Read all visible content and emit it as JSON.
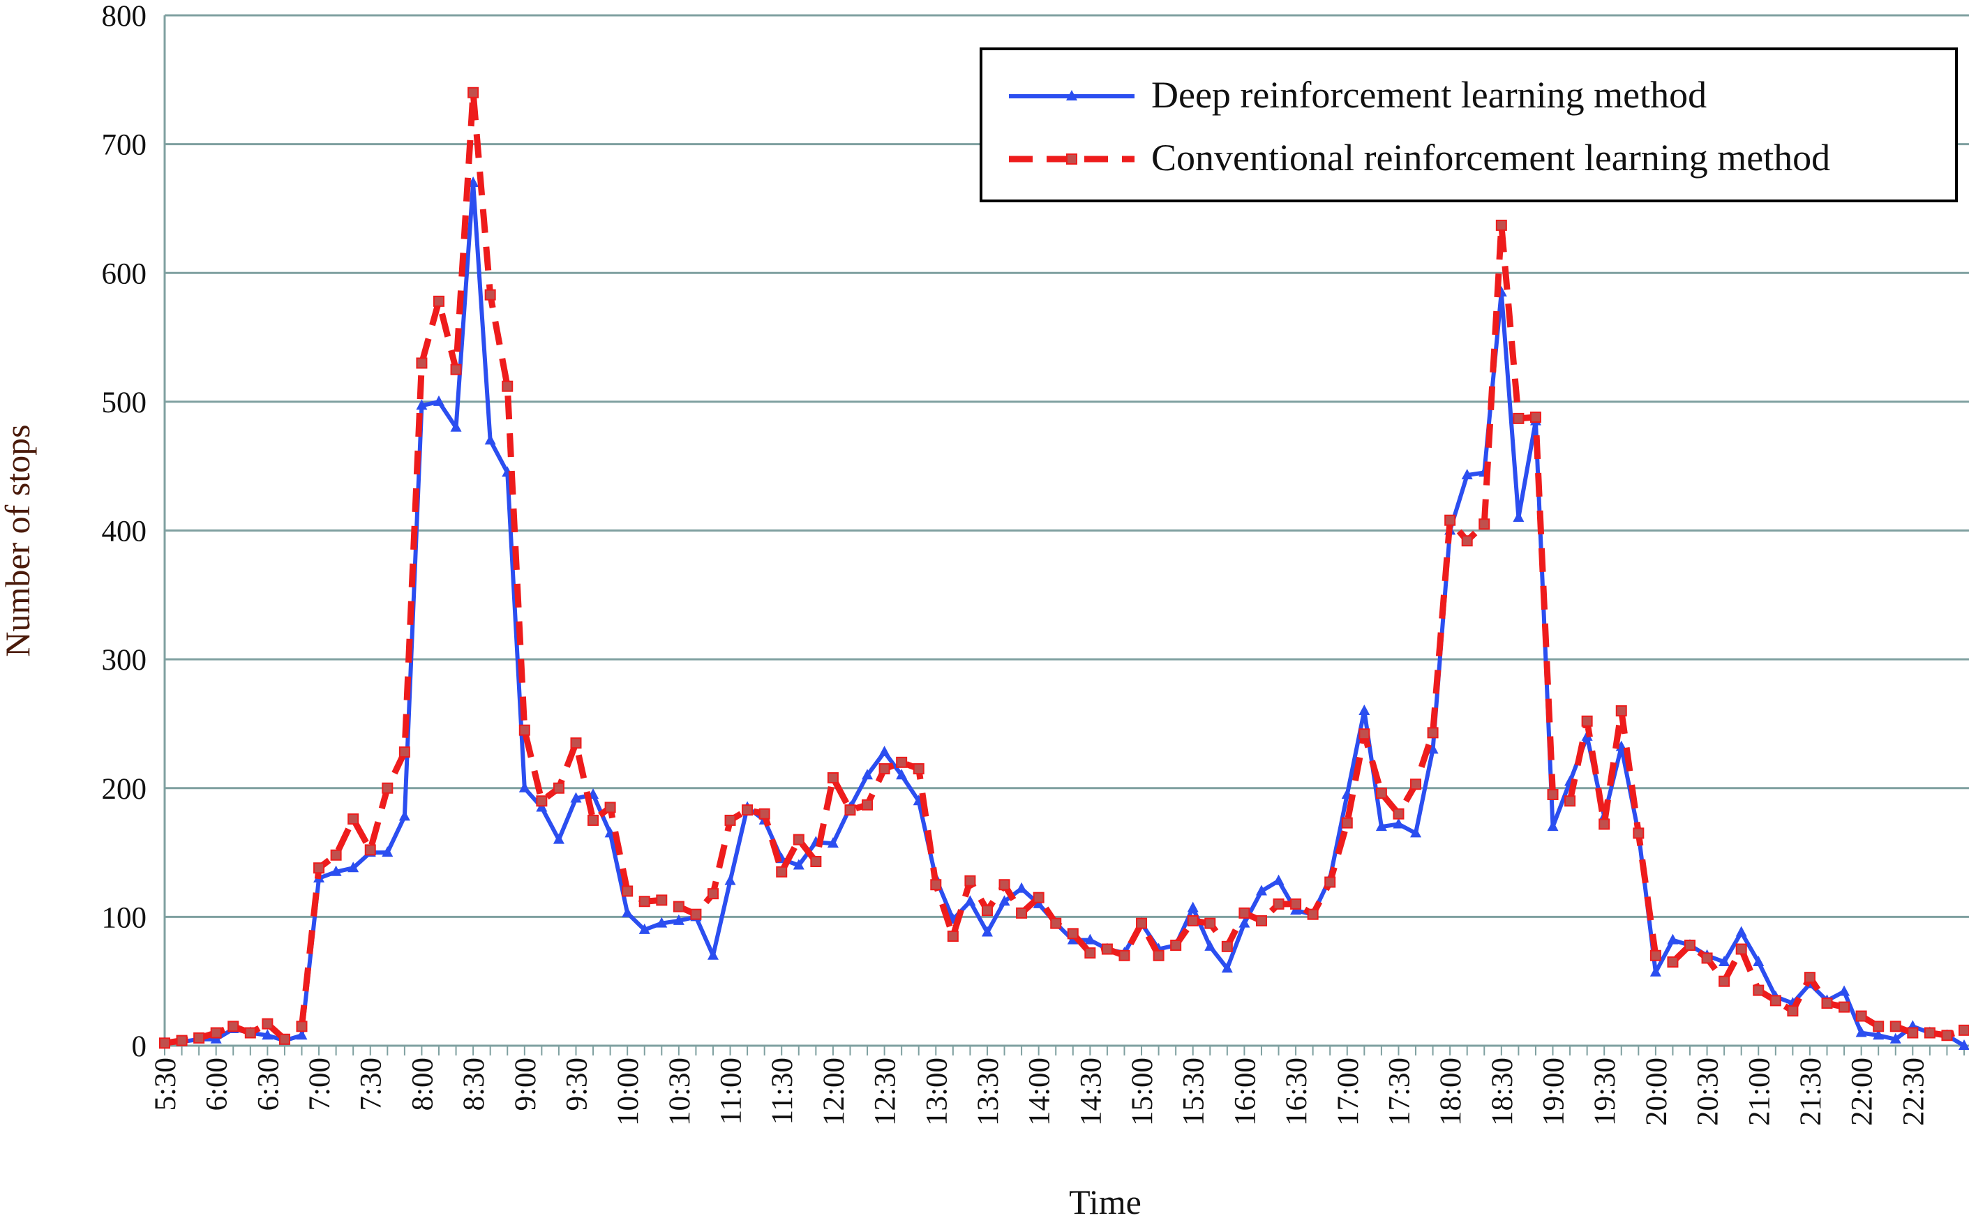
{
  "chart_data": {
    "type": "line",
    "x_label": "Time",
    "y_label": "Number of stops",
    "categories": [
      "5:30",
      null,
      null,
      "6:00",
      null,
      null,
      "6:30",
      null,
      null,
      "7:00",
      null,
      null,
      "7:30",
      null,
      null,
      "8:00",
      null,
      null,
      "8:30",
      null,
      null,
      "9:00",
      null,
      null,
      "9:30",
      null,
      null,
      "10:00",
      null,
      null,
      "10:30",
      null,
      null,
      "11:00",
      null,
      null,
      "11:30",
      null,
      null,
      "12:00",
      null,
      null,
      "12:30",
      null,
      null,
      "13:00",
      null,
      null,
      "13:30",
      null,
      null,
      "14:00",
      null,
      null,
      "14:30",
      null,
      null,
      "15:00",
      null,
      null,
      "15:30",
      null,
      null,
      "16:00",
      null,
      null,
      "16:30",
      null,
      null,
      "17:00",
      null,
      null,
      "17:30",
      null,
      null,
      "18:00",
      null,
      null,
      "18:30",
      null,
      null,
      "19:00",
      null,
      null,
      "19:30",
      null,
      null,
      "20:00",
      null,
      null,
      "20:30",
      null,
      null,
      "21:00",
      null,
      null,
      "21:30",
      null,
      null,
      "22:00",
      null,
      null,
      "22:30",
      null,
      null,
      null
    ],
    "series": [
      {
        "name": "Deep reinforcement learning method",
        "color": "#2b4ef0",
        "marker": "triangle",
        "dashed": false,
        "values": [
          2,
          3,
          5,
          5,
          13,
          10,
          8,
          4,
          8,
          130,
          135,
          138,
          150,
          150,
          178,
          497,
          500,
          480,
          670,
          470,
          445,
          200,
          185,
          160,
          192,
          195,
          165,
          103,
          90,
          95,
          97,
          100,
          70,
          128,
          185,
          175,
          145,
          140,
          158,
          157,
          185,
          210,
          228,
          210,
          190,
          130,
          98,
          112,
          88,
          112,
          122,
          110,
          95,
          82,
          82,
          75,
          72,
          95,
          75,
          78,
          107,
          77,
          60,
          95,
          120,
          128,
          105,
          102,
          130,
          195,
          260,
          170,
          172,
          165,
          230,
          400,
          443,
          445,
          585,
          410,
          485,
          170,
          205,
          240,
          178,
          232,
          165,
          57,
          82,
          78,
          70,
          65,
          88,
          65,
          38,
          33,
          48,
          35,
          42,
          10,
          8,
          5,
          15,
          10,
          8,
          0
        ]
      },
      {
        "name": "Conventional reinforcement learning method",
        "color": "#ee1c1c",
        "marker": "square",
        "dashed": true,
        "values": [
          2,
          4,
          6,
          10,
          15,
          10,
          17,
          5,
          15,
          138,
          148,
          176,
          152,
          200,
          228,
          530,
          578,
          525,
          740,
          583,
          512,
          245,
          190,
          200,
          235,
          175,
          185,
          120,
          112,
          113,
          108,
          102,
          118,
          175,
          183,
          180,
          135,
          160,
          143,
          208,
          183,
          187,
          215,
          220,
          215,
          125,
          85,
          128,
          105,
          125,
          103,
          115,
          95,
          87,
          72,
          75,
          70,
          95,
          70,
          78,
          97,
          95,
          77,
          103,
          97,
          110,
          110,
          102,
          127,
          173,
          242,
          196,
          180,
          203,
          243,
          408,
          392,
          405,
          637,
          487,
          488,
          195,
          190,
          252,
          172,
          260,
          165,
          70,
          65,
          78,
          68,
          50,
          75,
          43,
          35,
          27,
          53,
          33,
          30,
          23,
          15,
          15,
          10,
          10,
          8,
          12
        ]
      }
    ],
    "ylim": [
      0,
      800
    ],
    "yticks": [
      0,
      100,
      200,
      300,
      400,
      500,
      600,
      700,
      800
    ],
    "grid": true,
    "legend": "top-right"
  }
}
